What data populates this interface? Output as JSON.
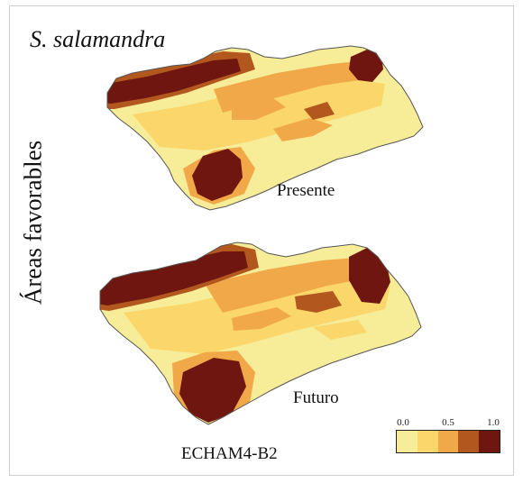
{
  "species_name": "S. salamandra",
  "y_axis_label": "Áreas favorables",
  "maps": [
    {
      "scenario": "Presente"
    },
    {
      "scenario": "Futuro"
    }
  ],
  "model_label": "ECHAM4-B2",
  "legend": {
    "ticks": [
      "0.0",
      "0.5",
      "1.0"
    ],
    "bins": [
      {
        "range": [
          0.0,
          0.2
        ],
        "color": "#f7ed99"
      },
      {
        "range": [
          0.2,
          0.4
        ],
        "color": "#fbd66a"
      },
      {
        "range": [
          0.4,
          0.6
        ],
        "color": "#f0a848"
      },
      {
        "range": [
          0.6,
          0.8
        ],
        "color": "#b2571e"
      },
      {
        "range": [
          0.8,
          1.0
        ],
        "color": "#6f1610"
      }
    ]
  }
}
